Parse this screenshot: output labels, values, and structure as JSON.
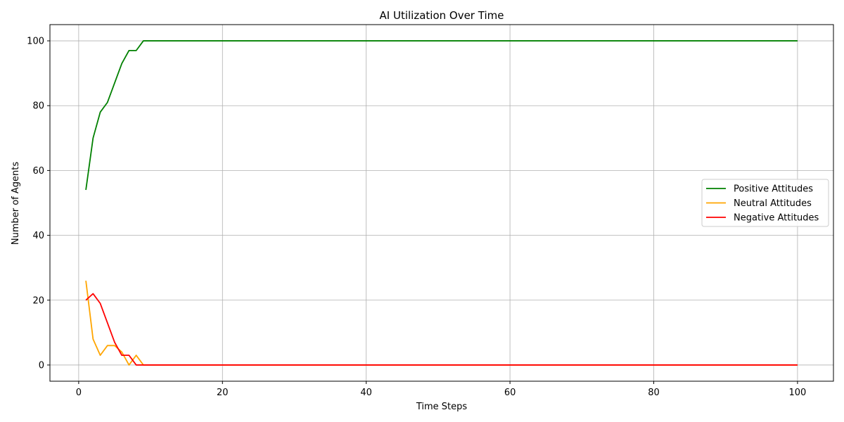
{
  "chart_data": {
    "type": "line",
    "title": "AI Utilization Over Time",
    "xlabel": "Time Steps",
    "ylabel": "Number of Agents",
    "xlim": [
      -4,
      105
    ],
    "ylim": [
      -5,
      105
    ],
    "x_ticks": [
      0,
      20,
      40,
      60,
      80,
      100
    ],
    "y_ticks": [
      0,
      20,
      40,
      60,
      80,
      100
    ],
    "grid": true,
    "legend_position": "center-right",
    "x": [
      1,
      2,
      3,
      4,
      5,
      6,
      7,
      8,
      9,
      10,
      11,
      12,
      13,
      14,
      15,
      16,
      17,
      18,
      19,
      20,
      21,
      22,
      23,
      24,
      25,
      26,
      27,
      28,
      29,
      30,
      31,
      32,
      33,
      34,
      35,
      36,
      37,
      38,
      39,
      40,
      41,
      42,
      43,
      44,
      45,
      46,
      47,
      48,
      49,
      50,
      51,
      52,
      53,
      54,
      55,
      56,
      57,
      58,
      59,
      60,
      61,
      62,
      63,
      64,
      65,
      66,
      67,
      68,
      69,
      70,
      71,
      72,
      73,
      74,
      75,
      76,
      77,
      78,
      79,
      80,
      81,
      82,
      83,
      84,
      85,
      86,
      87,
      88,
      89,
      90,
      91,
      92,
      93,
      94,
      95,
      96,
      97,
      98,
      99,
      100
    ],
    "series": [
      {
        "name": "Positive Attitudes",
        "color": "#008000",
        "values": [
          54,
          70,
          78,
          81,
          87,
          93,
          97,
          97,
          100,
          100,
          100,
          100,
          100,
          100,
          100,
          100,
          100,
          100,
          100,
          100,
          100,
          100,
          100,
          100,
          100,
          100,
          100,
          100,
          100,
          100,
          100,
          100,
          100,
          100,
          100,
          100,
          100,
          100,
          100,
          100,
          100,
          100,
          100,
          100,
          100,
          100,
          100,
          100,
          100,
          100,
          100,
          100,
          100,
          100,
          100,
          100,
          100,
          100,
          100,
          100,
          100,
          100,
          100,
          100,
          100,
          100,
          100,
          100,
          100,
          100,
          100,
          100,
          100,
          100,
          100,
          100,
          100,
          100,
          100,
          100,
          100,
          100,
          100,
          100,
          100,
          100,
          100,
          100,
          100,
          100,
          100,
          100,
          100,
          100,
          100,
          100,
          100,
          100,
          100,
          100
        ]
      },
      {
        "name": "Neutral Attitudes",
        "color": "#ffa500",
        "values": [
          26,
          8,
          3,
          6,
          6,
          4,
          0,
          3,
          0,
          0,
          0,
          0,
          0,
          0,
          0,
          0,
          0,
          0,
          0,
          0,
          0,
          0,
          0,
          0,
          0,
          0,
          0,
          0,
          0,
          0,
          0,
          0,
          0,
          0,
          0,
          0,
          0,
          0,
          0,
          0,
          0,
          0,
          0,
          0,
          0,
          0,
          0,
          0,
          0,
          0,
          0,
          0,
          0,
          0,
          0,
          0,
          0,
          0,
          0,
          0,
          0,
          0,
          0,
          0,
          0,
          0,
          0,
          0,
          0,
          0,
          0,
          0,
          0,
          0,
          0,
          0,
          0,
          0,
          0,
          0,
          0,
          0,
          0,
          0,
          0,
          0,
          0,
          0,
          0,
          0,
          0,
          0,
          0,
          0,
          0,
          0,
          0,
          0,
          0,
          0
        ]
      },
      {
        "name": "Negative Attitudes",
        "color": "#ff0000",
        "values": [
          20,
          22,
          19,
          13,
          7,
          3,
          3,
          0,
          0,
          0,
          0,
          0,
          0,
          0,
          0,
          0,
          0,
          0,
          0,
          0,
          0,
          0,
          0,
          0,
          0,
          0,
          0,
          0,
          0,
          0,
          0,
          0,
          0,
          0,
          0,
          0,
          0,
          0,
          0,
          0,
          0,
          0,
          0,
          0,
          0,
          0,
          0,
          0,
          0,
          0,
          0,
          0,
          0,
          0,
          0,
          0,
          0,
          0,
          0,
          0,
          0,
          0,
          0,
          0,
          0,
          0,
          0,
          0,
          0,
          0,
          0,
          0,
          0,
          0,
          0,
          0,
          0,
          0,
          0,
          0,
          0,
          0,
          0,
          0,
          0,
          0,
          0,
          0,
          0,
          0,
          0,
          0,
          0,
          0,
          0,
          0,
          0,
          0,
          0,
          0
        ]
      }
    ]
  }
}
